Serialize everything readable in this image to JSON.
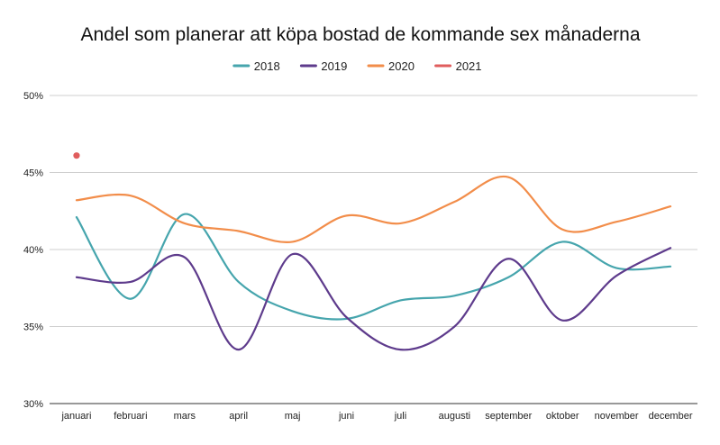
{
  "chart_data": {
    "type": "line",
    "title": "Andel som planerar att köpa bostad de kommande sex månaderna",
    "categories": [
      "januari",
      "februari",
      "mars",
      "april",
      "maj",
      "juni",
      "juli",
      "augusti",
      "september",
      "oktober",
      "november",
      "december"
    ],
    "ylim": [
      30,
      50
    ],
    "yticks": [
      30,
      35,
      40,
      45,
      50
    ],
    "ytick_labels": [
      "30%",
      "35%",
      "40%",
      "45%",
      "50%"
    ],
    "grid": true,
    "legend_position": "top",
    "series": [
      {
        "name": "2018",
        "color": "#46a5ad",
        "values": [
          42.1,
          36.8,
          42.3,
          37.9,
          36.0,
          35.5,
          36.7,
          37.0,
          38.2,
          40.5,
          38.8,
          38.9
        ]
      },
      {
        "name": "2019",
        "color": "#5e3b8c",
        "values": [
          38.2,
          37.9,
          39.5,
          33.5,
          39.7,
          35.6,
          33.5,
          35.0,
          39.4,
          35.4,
          38.3,
          40.1
        ]
      },
      {
        "name": "2020",
        "color": "#f28d4a",
        "values": [
          43.2,
          43.5,
          41.7,
          41.2,
          40.5,
          42.2,
          41.7,
          43.1,
          44.7,
          41.3,
          41.8,
          42.8
        ]
      },
      {
        "name": "2021",
        "color": "#e05d5d",
        "values": [
          46.1,
          null,
          null,
          null,
          null,
          null,
          null,
          null,
          null,
          null,
          null,
          null
        ]
      }
    ]
  }
}
